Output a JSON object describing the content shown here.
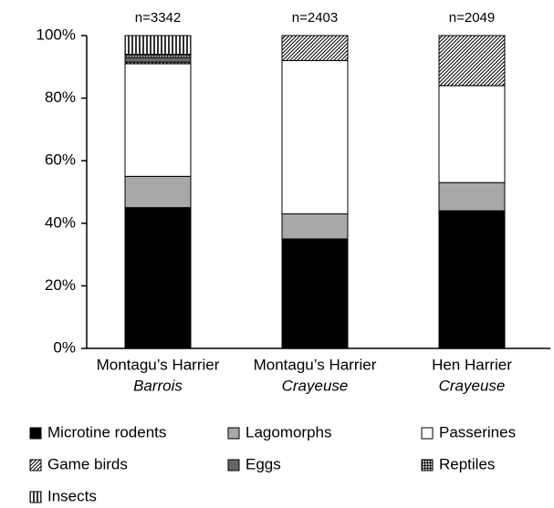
{
  "chart_data": {
    "type": "stacked_bar",
    "categories": [
      "Montagu’s Harrier",
      "Montagu’s Harrier",
      "Hen Harrier"
    ],
    "subcategories": [
      "Barrois",
      "Crayeuse",
      "Crayeuse"
    ],
    "annotations": [
      "n=3342",
      "n=2403",
      "n=2049"
    ],
    "series": [
      {
        "name": "Microtine rodents",
        "color": "#000000",
        "pattern": "solid",
        "values": [
          45,
          35,
          44
        ]
      },
      {
        "name": "Lagomorphs",
        "color": "#a8a8a8",
        "pattern": "solid",
        "values": [
          10,
          8,
          9
        ]
      },
      {
        "name": "Passerines",
        "color": "#ffffff",
        "pattern": "solid",
        "values": [
          36,
          49,
          31
        ]
      },
      {
        "name": "Game birds",
        "color": "#000000",
        "pattern": "diagonal",
        "values": [
          0.5,
          8,
          16
        ]
      },
      {
        "name": "Eggs",
        "color": "#666666",
        "pattern": "solid",
        "values": [
          1.5,
          0,
          0
        ]
      },
      {
        "name": "Reptiles",
        "color": "#000000",
        "pattern": "grid",
        "values": [
          1,
          0,
          0
        ]
      },
      {
        "name": "Insects",
        "color": "#000000",
        "pattern": "vertical",
        "values": [
          6,
          0,
          0
        ]
      }
    ],
    "ylim": [
      0,
      100
    ],
    "yticks": [
      {
        "value": 0,
        "label": "0%"
      },
      {
        "value": 20,
        "label": "20%"
      },
      {
        "value": 40,
        "label": "40%"
      },
      {
        "value": 60,
        "label": "60%"
      },
      {
        "value": 80,
        "label": "80%"
      },
      {
        "value": 100,
        "label": "100%"
      }
    ]
  }
}
